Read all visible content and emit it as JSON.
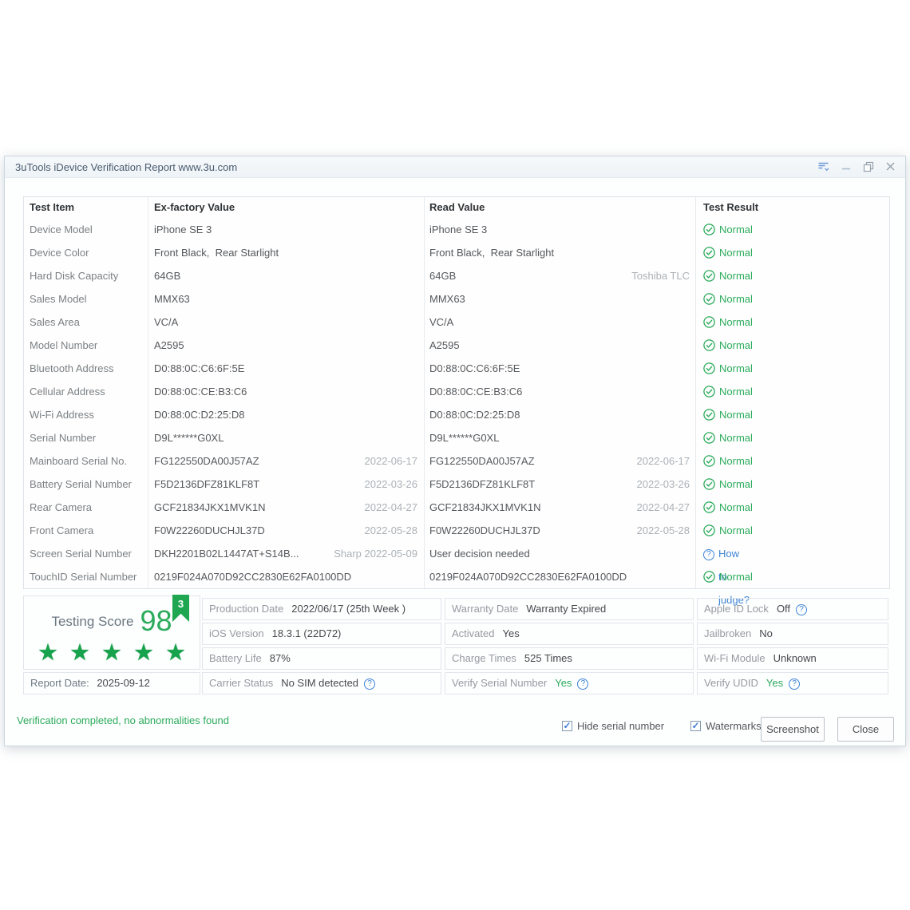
{
  "window": {
    "title": "3uTools iDevice Verification Report www.3u.com"
  },
  "table": {
    "headers": {
      "item": "Test Item",
      "ex": "Ex-factory Value",
      "read": "Read Value",
      "result": "Test Result"
    },
    "normal_label": "Normal",
    "judge_label": "How to judge?",
    "rows": [
      {
        "item": "Device Model",
        "ex": "iPhone SE 3",
        "read": "iPhone SE 3",
        "result": "normal"
      },
      {
        "item": "Device Color",
        "ex": "Front Black,  Rear Starlight",
        "read": "Front Black,  Rear Starlight",
        "result": "normal"
      },
      {
        "item": "Hard Disk Capacity",
        "ex": "64GB",
        "read": "64GB",
        "read_note": "Toshiba TLC",
        "result": "normal"
      },
      {
        "item": "Sales Model",
        "ex": "MMX63",
        "read": "MMX63",
        "result": "normal"
      },
      {
        "item": "Sales Area",
        "ex": "VC/A",
        "read": "VC/A",
        "result": "normal"
      },
      {
        "item": "Model Number",
        "ex": "A2595",
        "read": "A2595",
        "result": "normal"
      },
      {
        "item": "Bluetooth Address",
        "ex": "D0:88:0C:C6:6F:5E",
        "read": "D0:88:0C:C6:6F:5E",
        "result": "normal"
      },
      {
        "item": "Cellular Address",
        "ex": "D0:88:0C:CE:B3:C6",
        "read": "D0:88:0C:CE:B3:C6",
        "result": "normal"
      },
      {
        "item": "Wi-Fi Address",
        "ex": "D0:88:0C:D2:25:D8",
        "read": "D0:88:0C:D2:25:D8",
        "result": "normal"
      },
      {
        "item": "Serial Number",
        "ex": "D9L******G0XL",
        "read": "D9L******G0XL",
        "result": "normal"
      },
      {
        "item": "Mainboard Serial No.",
        "ex": "FG122550DA00J57AZ",
        "ex_note": "2022-06-17",
        "read": "FG122550DA00J57AZ",
        "read_note": "2022-06-17",
        "result": "normal"
      },
      {
        "item": "Battery Serial Number",
        "ex": "F5D2136DFZ81KLF8T",
        "ex_note": "2022-03-26",
        "read": "F5D2136DFZ81KLF8T",
        "read_note": "2022-03-26",
        "result": "normal"
      },
      {
        "item": "Rear Camera",
        "ex": "GCF21834JKX1MVK1N",
        "ex_note": "2022-04-27",
        "read": "GCF21834JKX1MVK1N",
        "read_note": "2022-04-27",
        "result": "normal"
      },
      {
        "item": "Front Camera",
        "ex": "F0W22260DUCHJL37D",
        "ex_note": "2022-05-28",
        "read": "F0W22260DUCHJL37D",
        "read_note": "2022-05-28",
        "result": "normal"
      },
      {
        "item": "Screen Serial Number",
        "ex": "DKH2201B02L1447AT+S14B...",
        "ex_note": "Sharp 2022-05-09",
        "read": "User decision needed",
        "result": "judge"
      },
      {
        "item": "TouchID Serial Number",
        "ex": "0219F024A070D92CC2830E62FA0100DD",
        "read": "0219F024A070D92CC2830E62FA0100DD",
        "result": "normal"
      }
    ]
  },
  "score": {
    "label": "Testing Score",
    "value": "98",
    "stars": 5,
    "ribbon": "3"
  },
  "report": {
    "label": "Report Date:",
    "value": "2025-09-12"
  },
  "info_columns": [
    [
      {
        "label": "Production Date",
        "value": "2022/06/17 (25th Week )"
      },
      {
        "label": "iOS Version",
        "value": "18.3.1 (22D72)"
      },
      {
        "label": "Battery Life",
        "value": "87%"
      },
      {
        "label": "Carrier Status",
        "value": "No SIM detected",
        "help": true
      }
    ],
    [
      {
        "label": "Warranty Date",
        "value": "Warranty Expired"
      },
      {
        "label": "Activated",
        "value": "Yes"
      },
      {
        "label": "Charge Times",
        "value": "525 Times"
      },
      {
        "label": "Verify Serial Number",
        "value": "Yes",
        "help": true,
        "value_class": "green"
      }
    ],
    [
      {
        "label": "Apple ID Lock",
        "value": "Off",
        "help": true
      },
      {
        "label": "Jailbroken",
        "value": "No"
      },
      {
        "label": "Wi-Fi Module",
        "value": "Unknown"
      },
      {
        "label": "Verify UDID",
        "value": "Yes",
        "help": true,
        "value_class": "green"
      }
    ]
  ],
  "footer": {
    "status": "Verification completed, no abnormalities found",
    "checkboxes": [
      {
        "label": "Hide serial number",
        "checked": true
      },
      {
        "label": "Watermarks",
        "checked": true
      }
    ],
    "buttons": {
      "screenshot": "Screenshot",
      "close": "Close"
    }
  },
  "colors": {
    "accent_green": "#2bab5b",
    "link_blue": "#3f85d6"
  }
}
